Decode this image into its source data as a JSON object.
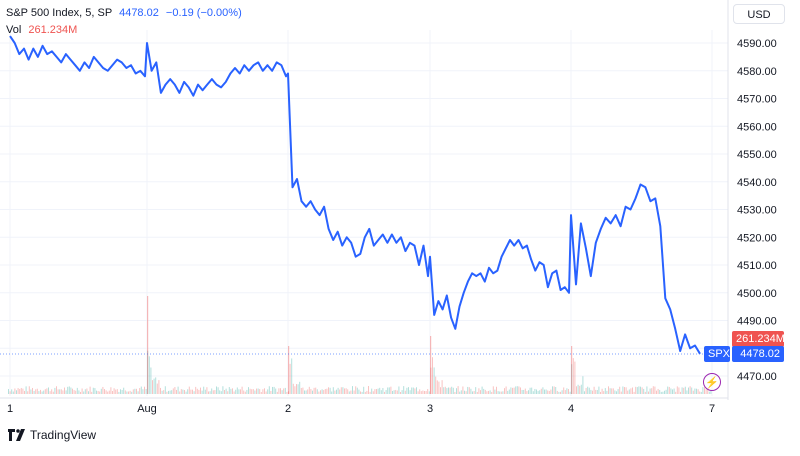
{
  "header": {
    "symbol": "S&P 500 Index, 5, SP",
    "price": "4478.02",
    "change": "−0.19 (−0.00%)"
  },
  "volume": {
    "label": "Vol",
    "value": "261.234M"
  },
  "currency_button": "USD",
  "price_flags": {
    "volume_flag": "261.234M",
    "symbol_flag": "SPX",
    "price_flag": "4478.02"
  },
  "footer": {
    "brand": "TradingView"
  },
  "colors": {
    "line": "#2962ff",
    "volume_up": "#26a69a",
    "volume_down": "#ef5350",
    "grid": "#f0f3fa"
  },
  "chart_data": {
    "type": "line",
    "title": "S&P 500 Index, 5, SP",
    "xlabel": "",
    "ylabel": "",
    "x_ticks": [
      "1",
      "Aug",
      "2",
      "3",
      "4",
      "7"
    ],
    "y_ticks": [
      4470.0,
      4480.0,
      4490.0,
      4500.0,
      4510.0,
      4520.0,
      4530.0,
      4540.0,
      4550.0,
      4560.0,
      4570.0,
      4580.0,
      4590.0
    ],
    "ylim": [
      4464,
      4594
    ],
    "grid": true,
    "series": [
      {
        "name": "SPX",
        "sessions": [
          {
            "start_label": "1",
            "values": [
              4592.5,
              4590,
              4586,
              4588,
              4584,
              4588,
              4585,
              4589,
              4586,
              4587,
              4585,
              4583,
              4586,
              4584,
              4582,
              4580,
              4583,
              4581,
              4585,
              4583,
              4581,
              4580,
              4582,
              4584,
              4583,
              4581,
              4582,
              4579,
              4580,
              4578
            ]
          },
          {
            "start_label": "Aug",
            "values": [
              4590,
              4580,
              4583,
              4572,
              4575,
              4577,
              4575,
              4572,
              4576,
              4574,
              4571,
              4575,
              4573,
              4575,
              4577,
              4575,
              4574,
              4576,
              4579,
              4581,
              4579,
              4582,
              4580,
              4582,
              4583,
              4580,
              4582,
              4580,
              4583,
              4582,
              4578
            ]
          },
          {
            "start_label": "2",
            "values": [
              4579,
              4538,
              4541,
              4533,
              4531,
              4533,
              4530,
              4528,
              4531,
              4523,
              4519,
              4522,
              4517,
              4520,
              4518,
              4513,
              4514,
              4520,
              4523,
              4517,
              4519,
              4521,
              4518,
              4521,
              4518,
              4520,
              4515,
              4518,
              4517,
              4510,
              4517,
              4506
            ]
          },
          {
            "start_label": "3",
            "values": [
              4513,
              4492,
              4497,
              4494,
              4499,
              4491,
              4487,
              4495,
              4500,
              4504,
              4507,
              4506,
              4507,
              4504,
              4509,
              4507,
              4508,
              4513,
              4516,
              4519,
              4517,
              4519,
              4516,
              4517,
              4512,
              4508,
              4511,
              4510,
              4502,
              4507,
              4508,
              4501,
              4502,
              4500
            ]
          },
          {
            "start_label": "4",
            "values": [
              4528,
              4503,
              4525,
              4516,
              4506,
              4518,
              4523,
              4527,
              4525,
              4528,
              4524,
              4531,
              4530,
              4534,
              4539,
              4538,
              4533,
              4534,
              4524,
              4498,
              4494,
              4487,
              4479,
              4485,
              4480,
              4481,
              4478
            ]
          }
        ]
      }
    ],
    "last_price": 4478.02,
    "volume": {
      "note": "volume histogram bars; spikes at session opens",
      "spikes_at_labels": [
        "Aug",
        "2",
        "3",
        "4"
      ]
    }
  }
}
